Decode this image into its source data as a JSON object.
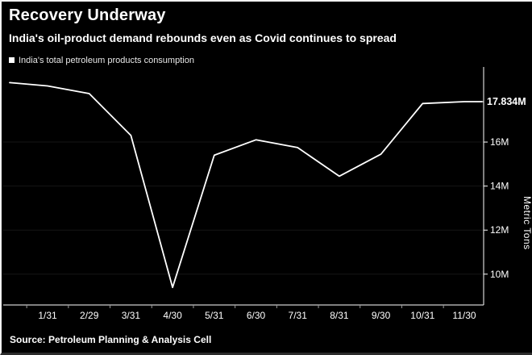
{
  "header": {
    "title": "Recovery Underway",
    "subtitle": "India's oil-product demand rebounds even as Covid continues to spread"
  },
  "legend": {
    "label": "India's total petroleum products consumption"
  },
  "footer": {
    "source": "Source: Petroleum Planning & Analysis Cell"
  },
  "colors": {
    "background": "#000000",
    "line": "#ffffff",
    "text": "#ffffff",
    "axis": "#ffffff",
    "grid": "#161616",
    "tick": "#9a9a9a"
  },
  "chart_data": {
    "type": "line",
    "title": "Recovery Underway",
    "subtitle": "India's oil-product demand rebounds even as Covid continues to spread",
    "legend": [
      "India's total petroleum products consumption"
    ],
    "xlabel": "",
    "ylabel": "Metric Tons",
    "unit": "M (million metric tons)",
    "categories": [
      "",
      "1/31",
      "2/29",
      "3/31",
      "4/30",
      "5/31",
      "6/30",
      "7/31",
      "8/31",
      "9/30",
      "10/31",
      "11/30"
    ],
    "values": [
      18.7,
      18.55,
      18.2,
      16.3,
      9.4,
      15.4,
      16.1,
      15.75,
      14.45,
      15.45,
      17.75,
      17.834
    ],
    "last_value_label": "17.834M",
    "ylim": [
      8.6,
      19.3
    ],
    "yticks": [
      10,
      12,
      14,
      16
    ],
    "ytick_labels": [
      "10M",
      "12M",
      "14M",
      "16M"
    ],
    "grid": false,
    "legend_position": "top-left",
    "y_axis_side": "right"
  }
}
